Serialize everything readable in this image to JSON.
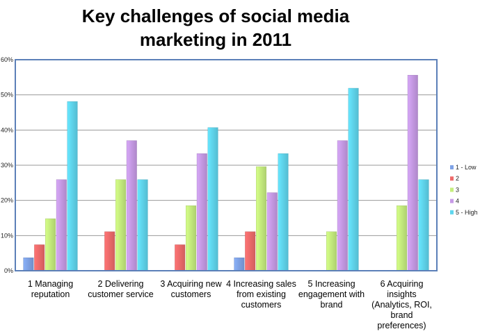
{
  "chart_data": {
    "type": "bar",
    "title_lines": [
      "Key challenges of social media",
      "marketing in 2011"
    ],
    "categories": [
      [
        "1 Managing",
        "reputation"
      ],
      [
        "2 Delivering",
        "customer service"
      ],
      [
        "3 Acquiring new",
        "customers"
      ],
      [
        "4 Increasing sales",
        "from existing",
        "customers"
      ],
      [
        "5 Increasing",
        "engagement with",
        "brand"
      ],
      [
        "6 Acquiring",
        "insights",
        "(Analytics, ROI,",
        "brand",
        "preferences)"
      ]
    ],
    "series": [
      {
        "name": "1 - Low",
        "color": "#7FA3E6",
        "values": [
          3.7,
          0,
          0,
          3.7,
          0,
          0
        ]
      },
      {
        "name": "2",
        "color": "#EE6B6B",
        "values": [
          7.4,
          11.1,
          7.4,
          11.1,
          0,
          0
        ]
      },
      {
        "name": "3",
        "color": "#C6EE7E",
        "values": [
          14.8,
          25.9,
          18.5,
          29.6,
          11.1,
          18.5
        ]
      },
      {
        "name": "4",
        "color": "#C79BE6",
        "values": [
          25.9,
          37.0,
          33.3,
          22.2,
          37.0,
          55.6
        ]
      },
      {
        "name": "5 - High",
        "color": "#5FD6EE",
        "values": [
          48.1,
          25.9,
          40.7,
          33.3,
          51.9,
          25.9
        ]
      }
    ],
    "yticks": [
      "0%",
      "10%",
      "20%",
      "30%",
      "40%",
      "50%",
      "60%"
    ],
    "ylim": [
      0,
      60
    ],
    "grid": true,
    "legend": "right"
  }
}
